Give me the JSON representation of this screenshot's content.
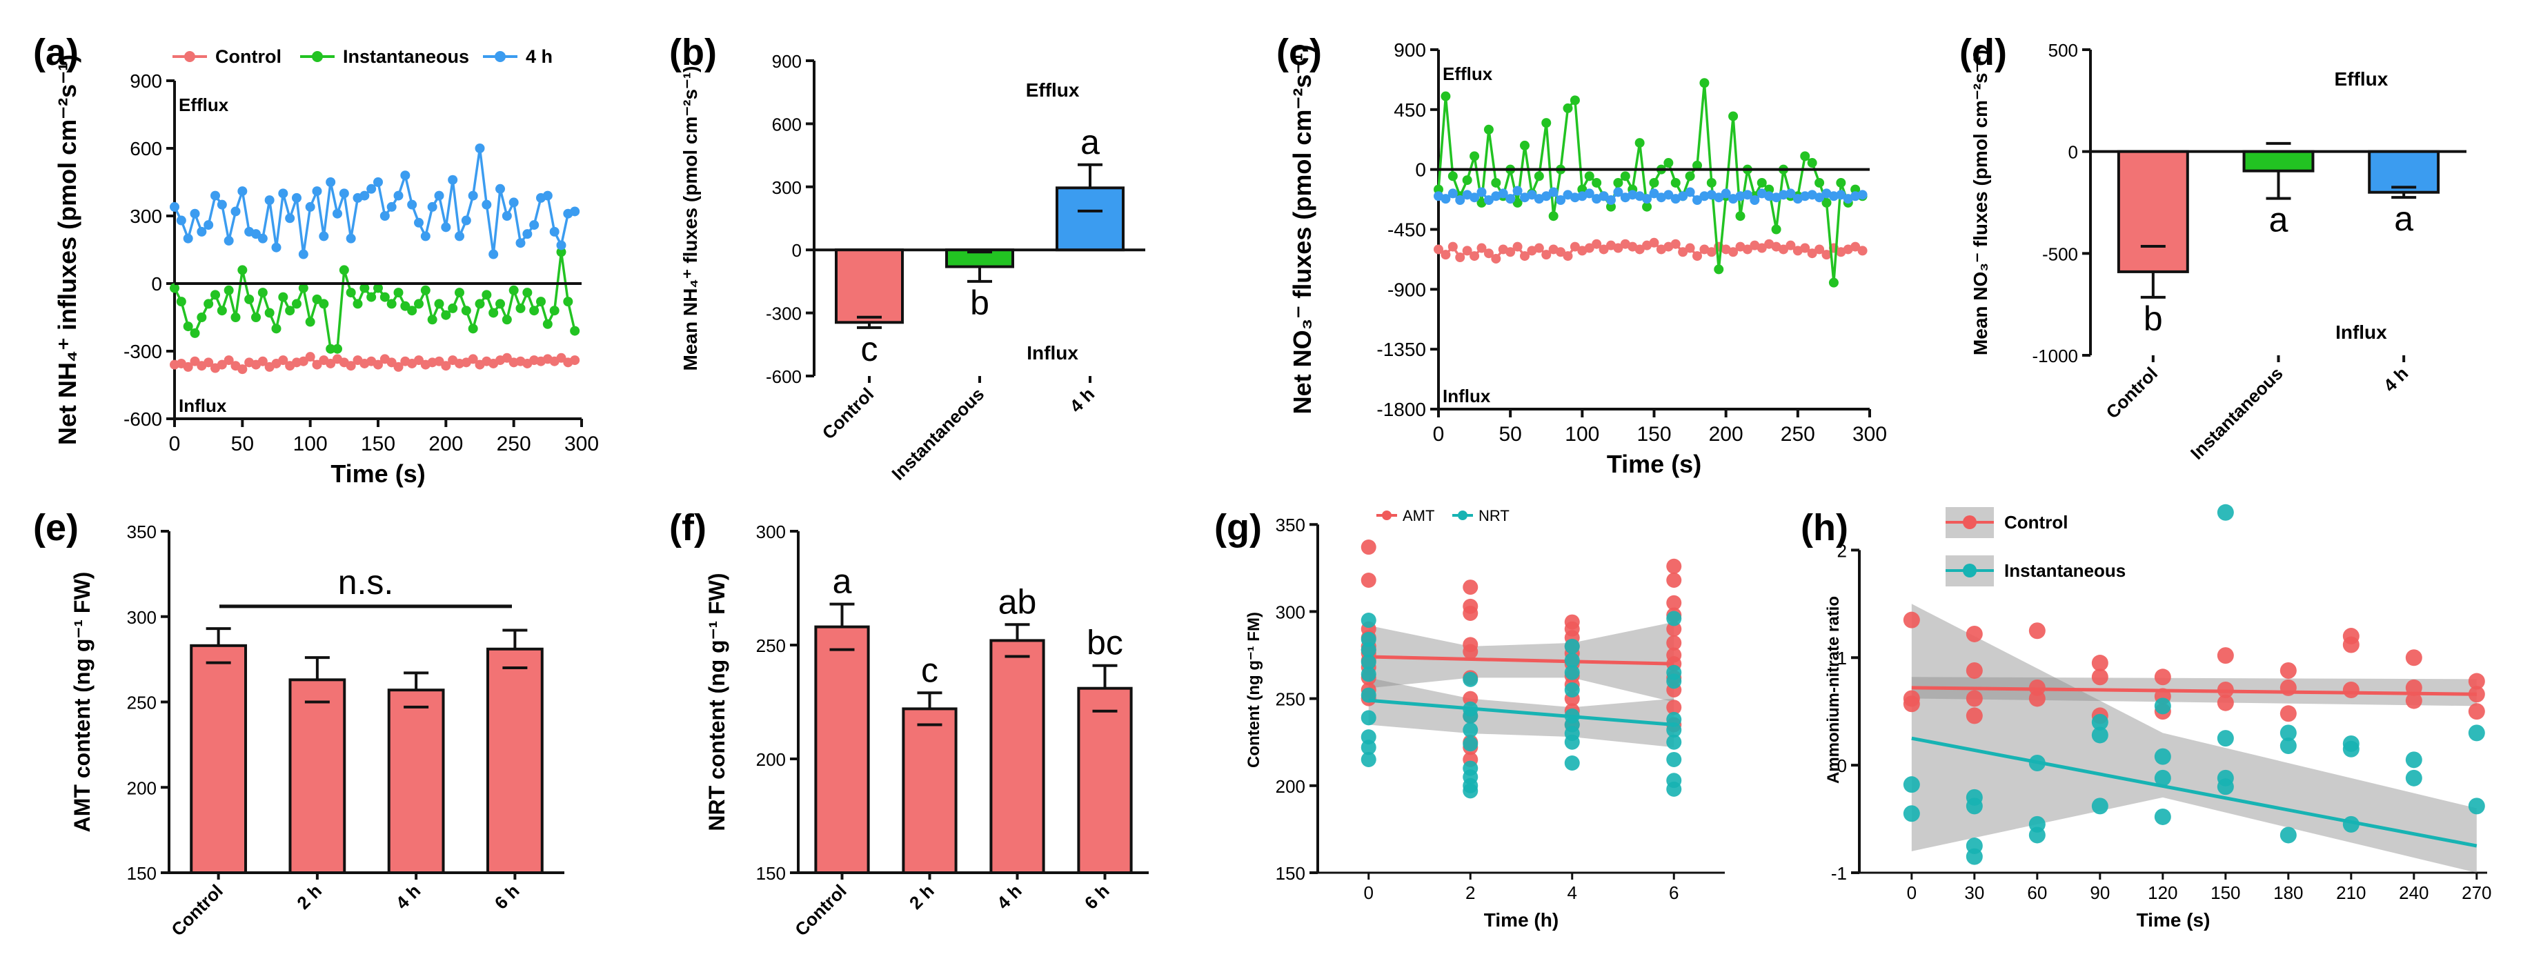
{
  "colors": {
    "control": "#f07272",
    "instantaneous": "#22c322",
    "h4": "#3b9cf0",
    "bar_red": "#f27374",
    "amt": "#f05a5a",
    "nrt": "#17b3b3",
    "axis": "#111111"
  },
  "chart_data": [
    {
      "id": "a",
      "type": "line",
      "panel_label": "(a)",
      "legend": [
        "Control",
        "Instantaneous",
        "4 h"
      ],
      "ylabel": "Net NH₄⁺ influxes (pmol cm⁻²s⁻¹)",
      "xlabel": "Time (s)",
      "xlim": [
        0,
        300
      ],
      "ylim": [
        -600,
        900
      ],
      "xticks": [
        "0",
        "50",
        "100",
        "150",
        "200",
        "250",
        "300"
      ],
      "yticks": [
        "-600",
        "-300",
        "0",
        "300",
        "600",
        "900"
      ],
      "annotation_top": "Efflux",
      "annotation_bottom": "Influx",
      "x_step": 5,
      "series": [
        {
          "name": "Control",
          "color_key": "control",
          "values": [
            -360,
            -355,
            -370,
            -345,
            -365,
            -350,
            -375,
            -360,
            -340,
            -365,
            -380,
            -350,
            -360,
            -345,
            -370,
            -355,
            -340,
            -365,
            -350,
            -345,
            -325,
            -360,
            -340,
            -355,
            -335,
            -350,
            -365,
            -340,
            -355,
            -345,
            -360,
            -335,
            -350,
            -370,
            -345,
            -355,
            -340,
            -360,
            -350,
            -345,
            -365,
            -340,
            -355,
            -350,
            -335,
            -360,
            -345,
            -355,
            -340,
            -330,
            -350,
            -345,
            -355,
            -340,
            -345,
            -335,
            -345,
            -330,
            -350,
            -340
          ]
        },
        {
          "name": "Instantaneous",
          "color_key": "instantaneous",
          "values": [
            -20,
            -80,
            -190,
            -220,
            -150,
            -90,
            -50,
            -120,
            -30,
            -150,
            60,
            -70,
            -150,
            -40,
            -130,
            -200,
            -60,
            -120,
            -90,
            -20,
            -170,
            -70,
            -90,
            -290,
            -290,
            60,
            -40,
            -90,
            -20,
            -60,
            -20,
            -60,
            -90,
            -40,
            -100,
            -120,
            -90,
            -30,
            -160,
            -90,
            -140,
            -110,
            -40,
            -120,
            -200,
            -90,
            -50,
            -130,
            -90,
            -160,
            -30,
            -110,
            -40,
            -120,
            -80,
            -180,
            -120,
            140,
            -80,
            -210
          ]
        },
        {
          "name": "4 h",
          "color_key": "h4",
          "values": [
            340,
            280,
            200,
            310,
            230,
            260,
            390,
            350,
            190,
            320,
            410,
            230,
            220,
            200,
            370,
            160,
            400,
            290,
            380,
            130,
            340,
            410,
            210,
            450,
            310,
            400,
            200,
            380,
            390,
            420,
            450,
            300,
            340,
            390,
            480,
            350,
            270,
            210,
            340,
            390,
            250,
            460,
            210,
            280,
            390,
            600,
            350,
            130,
            420,
            300,
            360,
            180,
            220,
            260,
            380,
            390,
            230,
            170,
            310,
            320
          ]
        }
      ]
    },
    {
      "id": "b",
      "type": "bar",
      "panel_label": "(b)",
      "ylabel": "Mean NH₄⁺ fluxes (pmol cm⁻²s⁻¹)",
      "categories": [
        "Control",
        "Instantaneous",
        "4 h"
      ],
      "values": [
        -345,
        -80,
        295
      ],
      "errors": [
        25,
        70,
        110
      ],
      "letters": [
        "c",
        "b",
        "a"
      ],
      "ylim": [
        -600,
        900
      ],
      "yticks": [
        "-600",
        "-300",
        "0",
        "300",
        "600",
        "900"
      ],
      "annotation_top": "Efflux",
      "annotation_bottom": "Influx"
    },
    {
      "id": "c",
      "type": "line",
      "panel_label": "(c)",
      "ylabel": "Net NO₃⁻ fluxes (pmol cm⁻²s⁻¹)",
      "xlabel": "Time (s)",
      "xlim": [
        0,
        300
      ],
      "ylim": [
        -1800,
        900
      ],
      "xticks": [
        "0",
        "50",
        "100",
        "150",
        "200",
        "250",
        "300"
      ],
      "yticks": [
        "-1800",
        "-1350",
        "-900",
        "-450",
        "0",
        "450",
        "900"
      ],
      "annotation_top": "Efflux",
      "annotation_bottom": "Influx",
      "x_step": 5,
      "series": [
        {
          "name": "Control",
          "color_key": "control",
          "values": [
            -600,
            -640,
            -580,
            -660,
            -610,
            -650,
            -590,
            -630,
            -670,
            -600,
            -620,
            -580,
            -650,
            -610,
            -590,
            -640,
            -600,
            -620,
            -650,
            -580,
            -610,
            -590,
            -560,
            -600,
            -570,
            -590,
            -560,
            -580,
            -600,
            -570,
            -550,
            -600,
            -580,
            -560,
            -620,
            -590,
            -650,
            -600,
            -620,
            -580,
            -600,
            -620,
            -580,
            -600,
            -570,
            -590,
            -560,
            -580,
            -600,
            -570,
            -610,
            -590,
            -630,
            -600,
            -640,
            -590,
            -620,
            -600,
            -580,
            -610
          ]
        },
        {
          "name": "Instantaneous",
          "color_key": "instantaneous",
          "values": [
            -150,
            550,
            -50,
            -200,
            -80,
            100,
            -250,
            300,
            -100,
            -200,
            0,
            -250,
            180,
            -180,
            -50,
            350,
            -350,
            0,
            460,
            520,
            -150,
            -50,
            -100,
            -200,
            -280,
            -100,
            -50,
            -150,
            200,
            -280,
            -100,
            0,
            50,
            -100,
            -200,
            -50,
            30,
            650,
            -100,
            -750,
            -200,
            400,
            -350,
            0,
            -200,
            -100,
            -150,
            -450,
            0,
            -200,
            -200,
            100,
            50,
            -100,
            -250,
            -850,
            -100,
            -250,
            -150,
            -200
          ]
        },
        {
          "name": "4 h",
          "color_key": "h4",
          "values": [
            -200,
            -220,
            -180,
            -230,
            -190,
            -210,
            -170,
            -230,
            -200,
            -180,
            -220,
            -160,
            -210,
            -190,
            -220,
            -200,
            -170,
            -230,
            -190,
            -210,
            -200,
            -180,
            -220,
            -200,
            -230,
            -170,
            -210,
            -190,
            -200,
            -220,
            -180,
            -210,
            -190,
            -220,
            -200,
            -170,
            -230,
            -200,
            -190,
            -210,
            -180,
            -220,
            -200,
            -190,
            -230,
            -180,
            -200,
            -210,
            -190,
            -180,
            -220,
            -200,
            -190,
            -210,
            -180,
            -200,
            -190,
            -220,
            -200,
            -190
          ]
        }
      ]
    },
    {
      "id": "d",
      "type": "bar",
      "panel_label": "(d)",
      "ylabel": "Mean NO₃⁻ fluxes (pmol cm⁻²s⁻¹)",
      "categories": [
        "Control",
        "Instantaneous",
        "4 h"
      ],
      "values": [
        -590,
        -95,
        -200
      ],
      "errors": [
        125,
        135,
        25
      ],
      "letters": [
        "b",
        "a",
        "a"
      ],
      "ylim": [
        -1000,
        500
      ],
      "yticks": [
        "-1000",
        "-500",
        "0",
        "500"
      ],
      "annotation_top": "Efflux",
      "annotation_bottom": "Influx"
    },
    {
      "id": "e",
      "type": "bar",
      "panel_label": "(e)",
      "ylabel": "AMT content (ng g⁻¹ FW)",
      "categories": [
        "Control",
        "2 h",
        "4 h",
        "6 h"
      ],
      "values": [
        283,
        263,
        257,
        281
      ],
      "errors": [
        10,
        13,
        10,
        11
      ],
      "ylim": [
        150,
        350
      ],
      "yticks": [
        "150",
        "200",
        "250",
        "300",
        "350"
      ],
      "bracket_text": "n.s."
    },
    {
      "id": "f",
      "type": "bar",
      "panel_label": "(f)",
      "ylabel": "NRT content (ng g⁻¹ FW)",
      "categories": [
        "Control",
        "2 h",
        "4 h",
        "6 h"
      ],
      "values": [
        258,
        222,
        252,
        231
      ],
      "errors": [
        10,
        7,
        7,
        10
      ],
      "letters": [
        "a",
        "c",
        "ab",
        "bc"
      ],
      "ylim": [
        150,
        300
      ],
      "yticks": [
        "150",
        "200",
        "250",
        "300"
      ]
    },
    {
      "id": "g",
      "type": "scatter",
      "panel_label": "(g)",
      "legend": [
        "AMT",
        "NRT"
      ],
      "ylabel": "Content (ng g⁻¹ FM)",
      "xlabel": "Time (h)",
      "xlim": [
        -1,
        7
      ],
      "ylim": [
        150,
        360
      ],
      "xticks": [
        "0",
        "2",
        "4",
        "6"
      ],
      "yticks": [
        "150",
        "200",
        "250",
        "300",
        "350"
      ],
      "series": [
        {
          "name": "AMT",
          "color_key": "amt",
          "x": [
            0,
            0,
            0,
            0,
            0,
            0,
            0,
            0,
            0,
            0,
            0,
            0,
            2,
            2,
            2,
            2,
            2,
            2,
            2,
            2,
            2,
            2,
            2,
            4,
            4,
            4,
            4,
            4,
            4,
            4,
            4,
            4,
            4,
            4,
            6,
            6,
            6,
            6,
            6,
            6,
            6,
            6,
            6,
            6,
            6,
            6
          ],
          "y": [
            337,
            318,
            290,
            285,
            280,
            278,
            276,
            272,
            268,
            262,
            255,
            250,
            314,
            303,
            299,
            281,
            277,
            262,
            250,
            240,
            225,
            222,
            215,
            294,
            290,
            285,
            280,
            276,
            270,
            263,
            258,
            250,
            243,
            235,
            326,
            318,
            305,
            298,
            290,
            282,
            275,
            270,
            262,
            255,
            245,
            235
          ],
          "fit": [
            274,
            270
          ]
        },
        {
          "name": "NRT",
          "color_key": "nrt",
          "x": [
            0,
            0,
            0,
            0,
            0,
            0,
            0,
            0,
            0,
            0,
            2,
            2,
            2,
            2,
            2,
            2,
            2,
            2,
            2,
            4,
            4,
            4,
            4,
            4,
            4,
            4,
            4,
            4,
            6,
            6,
            6,
            6,
            6,
            6,
            6,
            6,
            6
          ],
          "y": [
            295,
            284,
            278,
            271,
            264,
            252,
            239,
            228,
            222,
            215,
            261,
            244,
            240,
            232,
            224,
            210,
            205,
            200,
            197,
            280,
            272,
            265,
            255,
            240,
            235,
            230,
            225,
            213,
            296,
            265,
            260,
            238,
            232,
            225,
            215,
            203,
            198
          ],
          "fit": [
            249,
            235
          ],
          "band": [
            [
              235,
              262
            ],
            [
              230,
              240
            ],
            [
              222,
              250
            ]
          ]
        }
      ],
      "band_amt": [
        [
          256,
          292
        ],
        [
          262,
          280
        ],
        [
          248,
          294
        ]
      ]
    },
    {
      "id": "h",
      "type": "scatter",
      "panel_label": "(h)",
      "legend": [
        "Control",
        "Instantaneous"
      ],
      "ylabel": "Ammonium-nitrate ratio",
      "xlabel": "Time (s)",
      "xlim": [
        -25,
        275
      ],
      "ylim": [
        -1,
        2.4
      ],
      "xticks": [
        "0",
        "30",
        "60",
        "90",
        "120",
        "150",
        "180",
        "210",
        "240",
        "270"
      ],
      "yticks": [
        "-1",
        "0",
        "1",
        "2"
      ],
      "series": [
        {
          "name": "Control",
          "color_key": "amt",
          "x": [
            0,
            0,
            0,
            30,
            30,
            30,
            30,
            60,
            60,
            60,
            90,
            90,
            90,
            120,
            120,
            120,
            150,
            150,
            150,
            180,
            180,
            180,
            210,
            210,
            210,
            240,
            240,
            240,
            270,
            270,
            270
          ],
          "y": [
            1.35,
            0.62,
            0.57,
            1.22,
            0.88,
            0.62,
            0.46,
            1.25,
            0.72,
            0.62,
            0.95,
            0.82,
            0.46,
            0.82,
            0.64,
            0.5,
            1.02,
            0.7,
            0.58,
            0.88,
            0.72,
            0.48,
            1.2,
            1.12,
            0.7,
            1.0,
            0.72,
            0.6,
            0.78,
            0.66,
            0.5
          ],
          "fit": [
            0.72,
            0.66
          ]
        },
        {
          "name": "Instantaneous",
          "color_key": "nrt",
          "x": [
            0,
            0,
            30,
            30,
            30,
            30,
            60,
            60,
            60,
            90,
            90,
            90,
            120,
            120,
            120,
            120,
            150,
            150,
            150,
            150,
            180,
            180,
            180,
            210,
            210,
            210,
            240,
            240,
            270,
            270
          ],
          "y": [
            -0.18,
            -0.45,
            -0.3,
            -0.38,
            -0.75,
            -0.85,
            0.02,
            -0.55,
            -0.65,
            0.4,
            0.28,
            -0.38,
            0.55,
            0.08,
            -0.12,
            -0.48,
            2.35,
            0.25,
            -0.12,
            -0.2,
            0.3,
            0.18,
            -0.65,
            0.2,
            0.15,
            -0.55,
            0.05,
            -0.12,
            0.3,
            -0.38
          ],
          "fit": [
            0.25,
            -0.75
          ]
        }
      ],
      "band_control": [
        [
          0.62,
          0.82
        ],
        [
          0.55,
          0.8
        ]
      ],
      "band_instantaneous": [
        [
          -0.8,
          1.5
        ],
        [
          0.3,
          -0.6
        ],
        [
          -1.0,
          -0.4
        ]
      ]
    }
  ]
}
